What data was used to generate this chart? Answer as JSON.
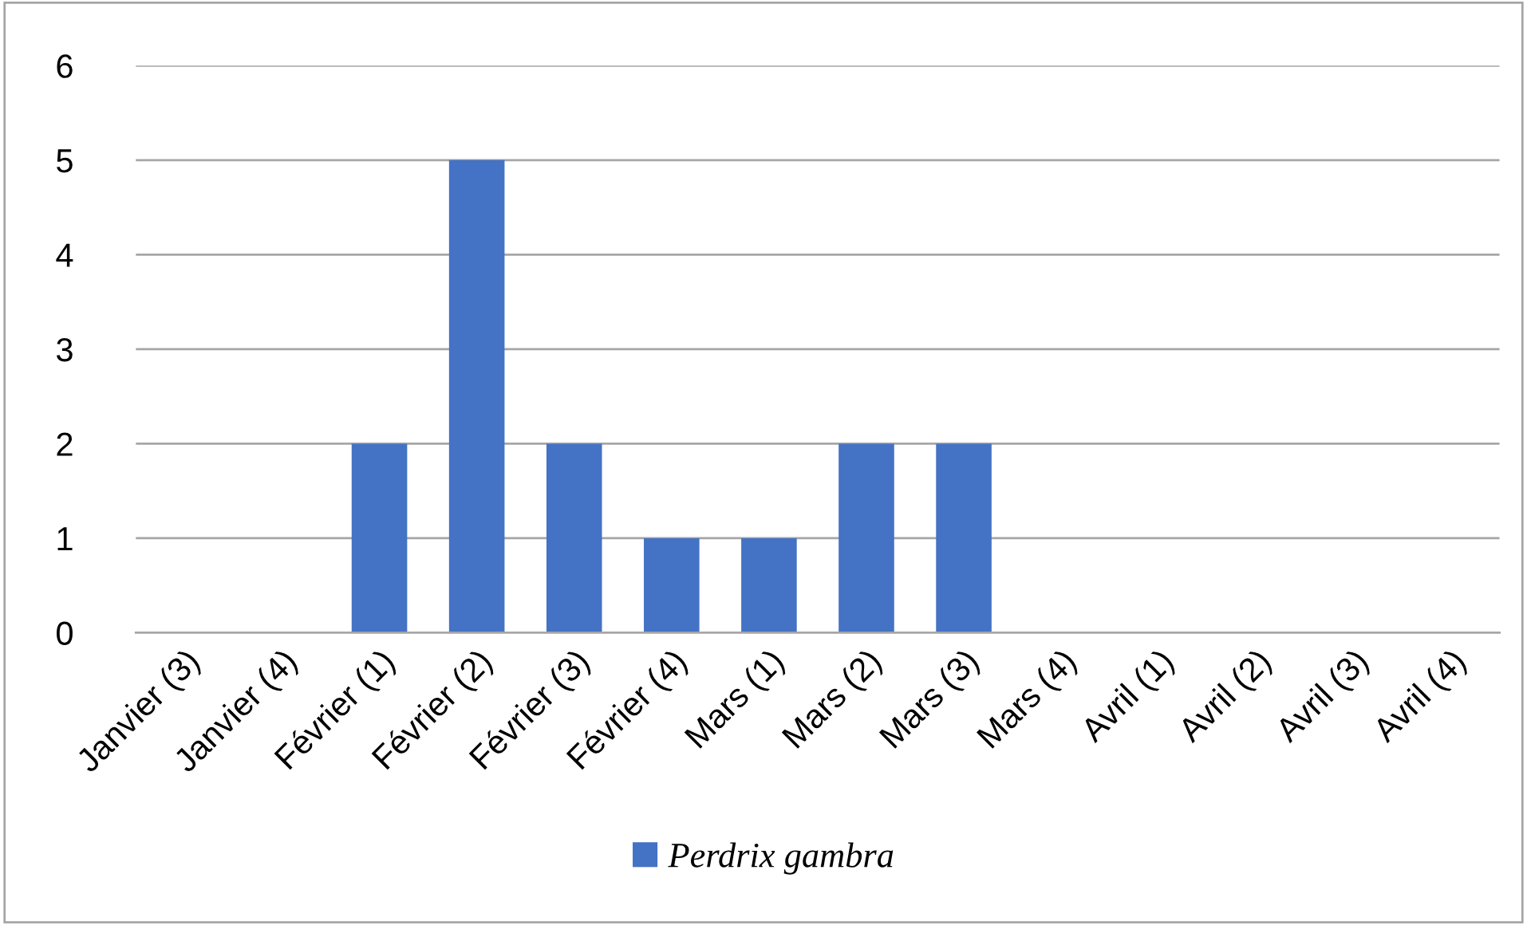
{
  "chart_data": {
    "type": "bar",
    "categories": [
      "Janvier (3)",
      "Janvier (4)",
      "Février (1)",
      "Février (2)",
      "Février (3)",
      "Février (4)",
      "Mars (1)",
      "Mars (2)",
      "Mars (3)",
      "Mars (4)",
      "Avril (1)",
      "Avril (2)",
      "Avril (3)",
      "Avril (4)"
    ],
    "series": [
      {
        "name": "Perdrix gambra",
        "color": "#4472c4",
        "values": [
          0,
          0,
          2,
          5,
          2,
          1,
          1,
          2,
          2,
          0,
          0,
          0,
          0,
          0
        ]
      }
    ],
    "ylim": [
      0,
      6
    ],
    "yticks": [
      0,
      1,
      2,
      3,
      4,
      5,
      6
    ],
    "grid": "y",
    "legend": "bottom"
  }
}
